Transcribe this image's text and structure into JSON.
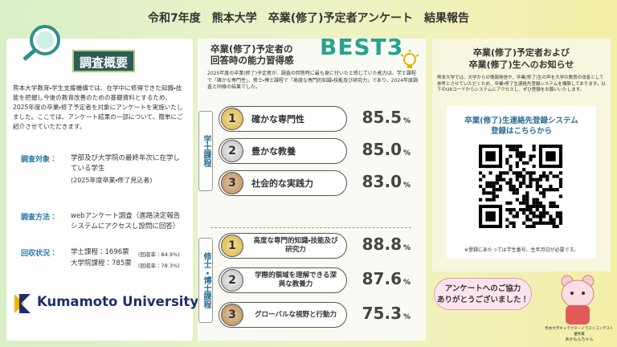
{
  "header": {
    "title": "令和7年度　熊本大学　卒業(修了)予定者アンケート　結果報告"
  },
  "overview": {
    "heading": "調査概要",
    "intro": "熊本大学教育・学生支援機構では、在学中に修得できた知識・技能を把握し今後の教育改善のための基礎資料とするため、2025年度の卒業・修了予定者を対象にアンケートを実施いたしました。ここでは、アンケート結果の一部について、簡単にご紹介させていただきます。",
    "target": {
      "label": "調査対象：",
      "text": "学部及び大学院の最終年次に在学している学生",
      "note": "(2025年度卒業・修了見込者)"
    },
    "method": {
      "label": "調査方法：",
      "text": "webアンケート調査（進路決定報告システムにアクセスし設問に回答）"
    },
    "collection": {
      "label": "回収状況：",
      "lines": [
        {
          "text": "学士課程：1696票",
          "note": "(回収率：84.9%)"
        },
        {
          "text": "大学院課程：785票",
          "note": "(回収率：78.3%)"
        }
      ]
    },
    "logo": "Kumamoto University"
  },
  "ranking": {
    "title": [
      "卒業(修了)予定者の",
      "回答時の能力習得感"
    ],
    "badge": "BEST3",
    "description": "2025年度の卒業(修了)予定者が、調査の回答時に最も身に付いたと感じていた能力は、学士課程で「確かな専門性」、修士・博士課程で「高度な専門的知識・技能及び研究力」であり、2024年度調査と同様の結果でした。",
    "unit": "%",
    "groups": [
      {
        "label": "学士課程",
        "items": [
          {
            "rank": "1",
            "text": "確かな専門性",
            "value": "85.5"
          },
          {
            "rank": "2",
            "text": "豊かな教養",
            "value": "85.0"
          },
          {
            "rank": "3",
            "text": "社会的な実践力",
            "value": "83.0"
          }
        ]
      },
      {
        "label": "修士・博士課程",
        "items": [
          {
            "rank": "1",
            "text": "高度な専門的知識・技能及び研究力",
            "value": "88.8"
          },
          {
            "rank": "2",
            "text": "学際的領域を理解できる深與な教養力",
            "value": "87.6"
          },
          {
            "rank": "3",
            "text": "グローバルな視野と行動力",
            "value": "75.3"
          }
        ]
      }
    ]
  },
  "notice": {
    "title": [
      "卒業(修了)予定者および",
      "卒業(修了)生へのお知らせ"
    ],
    "body": "熊本大学では、大学からの情報発信や、卒業(修了)生の声を大学の教育の改善として参考とさせていただくため、卒業・修了生連絡先登録システムを構築しております。以下のQRコードからシステムにアクセスし、ぜひ登録をお願いいたします。",
    "box_title": [
      "卒業(修了)生連絡先登録システム",
      "登録はこちらから"
    ],
    "note": "※登録にあたっては学生番号、生年月日が必要です。",
    "bubble": [
      "アンケートへのご協力",
      "ありがとうございました！"
    ],
    "credit": [
      "熊本大学キャラクターイラストコンテスト 優秀賞",
      "あかもんちゃん"
    ]
  }
}
